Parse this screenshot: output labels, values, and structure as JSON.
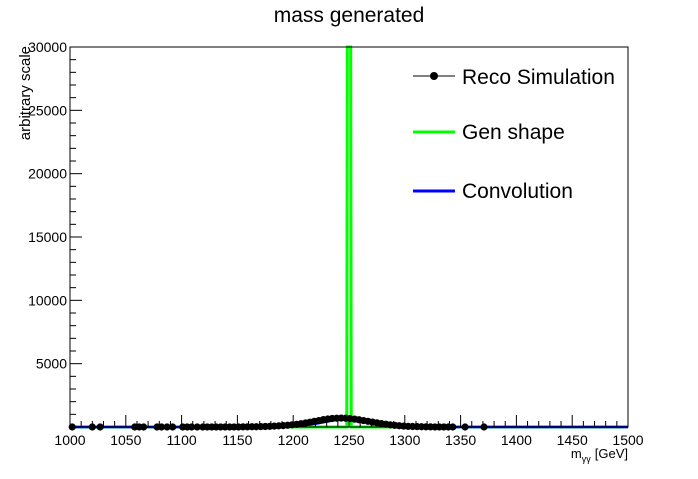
{
  "chart_data": {
    "type": "line",
    "title": "mass generated",
    "xlabel": "m_{γγ} [GeV]",
    "xlabel_main": "m",
    "xlabel_sub": "γγ",
    "xlabel_unit": "[GeV]",
    "ylabel": "arbitrary scale",
    "xlim": [
      1000,
      1500
    ],
    "ylim": [
      0,
      30000
    ],
    "x_ticks": [
      1000,
      1050,
      1100,
      1150,
      1200,
      1250,
      1300,
      1350,
      1400,
      1450,
      1500
    ],
    "y_ticks": [
      5000,
      10000,
      15000,
      20000,
      25000,
      30000
    ],
    "legend_position": "top-right",
    "series": [
      {
        "name": "Reco Simulation",
        "style": "markers",
        "color": "#000000",
        "x": [
          1002,
          1020,
          1027,
          1058,
          1062,
          1066,
          1078,
          1082,
          1087,
          1092,
          1101,
          1105,
          1109,
          1114,
          1119,
          1123,
          1127,
          1131,
          1135,
          1139,
          1143,
          1147,
          1151,
          1155,
          1159,
          1163,
          1167,
          1171,
          1175,
          1179,
          1183,
          1187,
          1191,
          1195,
          1199,
          1203,
          1207,
          1211,
          1215,
          1219,
          1223,
          1227,
          1231,
          1235,
          1239,
          1243,
          1247,
          1251,
          1255,
          1259,
          1263,
          1267,
          1271,
          1275,
          1279,
          1283,
          1287,
          1291,
          1295,
          1299,
          1303,
          1307,
          1311,
          1315,
          1319,
          1323,
          1327,
          1331,
          1335,
          1339,
          1343,
          1354,
          1371
        ],
        "y": [
          0,
          0,
          0,
          0,
          0,
          0,
          0,
          0,
          0,
          0,
          0,
          0,
          0,
          0,
          0,
          0,
          0,
          0,
          0,
          0,
          0,
          0,
          0,
          10,
          10,
          20,
          20,
          30,
          40,
          50,
          70,
          90,
          110,
          140,
          170,
          210,
          260,
          320,
          380,
          450,
          510,
          580,
          630,
          670,
          690,
          700,
          690,
          660,
          620,
          570,
          510,
          450,
          390,
          330,
          270,
          220,
          170,
          130,
          100,
          70,
          50,
          40,
          30,
          20,
          10,
          10,
          0,
          0,
          0,
          0,
          0,
          0,
          0
        ]
      },
      {
        "name": "Gen shape",
        "style": "line",
        "color": "#00ff00",
        "x": [
          1000,
          1248,
          1248.5,
          1251.5,
          1252,
          1500
        ],
        "y": [
          0,
          0,
          30000,
          30000,
          0,
          0
        ]
      },
      {
        "name": "Convolution",
        "style": "line",
        "color": "#0000ff",
        "x": [
          1000,
          1150,
          1170,
          1190,
          1200,
          1210,
          1220,
          1230,
          1240,
          1250,
          1260,
          1270,
          1280,
          1290,
          1300,
          1310,
          1330,
          1350,
          1500
        ],
        "y": [
          0,
          0,
          15,
          40,
          80,
          150,
          260,
          420,
          590,
          680,
          590,
          420,
          260,
          150,
          80,
          40,
          10,
          0,
          0
        ]
      }
    ]
  }
}
